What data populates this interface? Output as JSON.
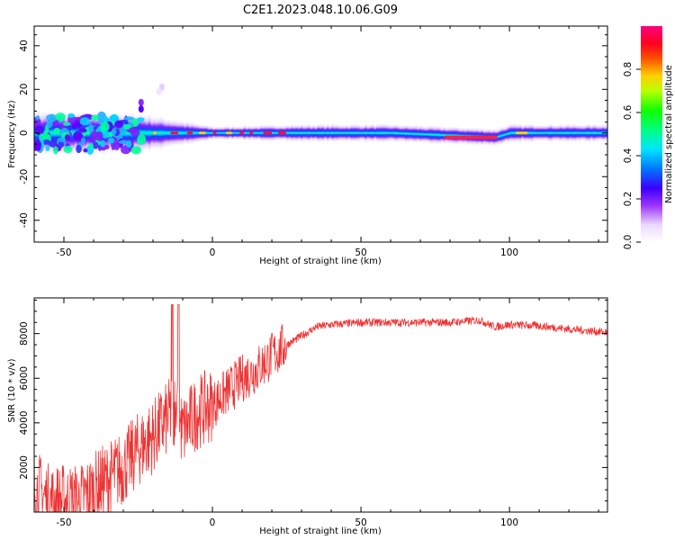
{
  "title": "C2E1.2023.048.10.06.G09",
  "chart_data": [
    {
      "type": "heatmap",
      "title": "C2E1.2023.048.10.06.G09",
      "xlabel": "Height of straight line (km)",
      "ylabel": "Frequency (Hz)",
      "xlim": [
        -60,
        133
      ],
      "ylim": [
        -50,
        49
      ],
      "xticks": [
        -50,
        0,
        50,
        100
      ],
      "xtick_labels": [
        "-50",
        "0",
        "50",
        "100"
      ],
      "yticks": [
        -40,
        -20,
        0,
        20,
        40
      ],
      "ytick_labels": [
        "-40",
        "-20",
        "0",
        "20",
        "40"
      ],
      "colorbar": {
        "label": "Normalized spectral amplitude",
        "range": [
          0,
          1
        ],
        "ticks": [
          0.0,
          0.2,
          0.4,
          0.6,
          0.8
        ],
        "tick_labels": [
          "0.0",
          "0.2",
          "0.4",
          "0.6",
          "0.8"
        ],
        "colormap": "rainbow (white-violet-blue-cyan-green-yellow-red-magenta)"
      },
      "ridge": {
        "description": "spectral energy concentrated near 0 Hz along the profile",
        "center_x": [
          -60,
          -25,
          0,
          30,
          60,
          78,
          95,
          100,
          133
        ],
        "center_freq": [
          0,
          0,
          0,
          0,
          0,
          -1,
          -2,
          0,
          0
        ],
        "half_width_hz": [
          10,
          9,
          3,
          4,
          4,
          4,
          4,
          4,
          4
        ]
      }
    },
    {
      "type": "line",
      "xlabel": "Height of straight line (km)",
      "ylabel": "SNR (10 * v/v)",
      "xlim": [
        -60,
        133
      ],
      "ylim": [
        0,
        9600
      ],
      "xticks": [
        -50,
        0,
        50,
        100
      ],
      "xtick_labels": [
        "-50",
        "0",
        "50",
        "100"
      ],
      "yticks": [
        2000,
        4000,
        6000,
        8000
      ],
      "ytick_labels": [
        "2000",
        "4000",
        "6000",
        "8000"
      ],
      "color": "#ee3333",
      "series": [
        {
          "name": "SNR",
          "x": [
            -60,
            -55,
            -50,
            -45,
            -40,
            -35,
            -30,
            -25,
            -20,
            -15,
            -13,
            -10,
            -5,
            0,
            5,
            10,
            15,
            20,
            25,
            30,
            35,
            40,
            50,
            60,
            70,
            80,
            85,
            90,
            95,
            100,
            110,
            120,
            133
          ],
          "y": [
            1200,
            500,
            500,
            500,
            1000,
            1500,
            2000,
            2800,
            3400,
            4200,
            4700,
            3600,
            4500,
            4800,
            5400,
            6000,
            6400,
            7000,
            7500,
            7900,
            8300,
            8400,
            8500,
            8500,
            8500,
            8500,
            8550,
            8600,
            8300,
            8400,
            8350,
            8200,
            8050
          ]
        }
      ]
    }
  ]
}
